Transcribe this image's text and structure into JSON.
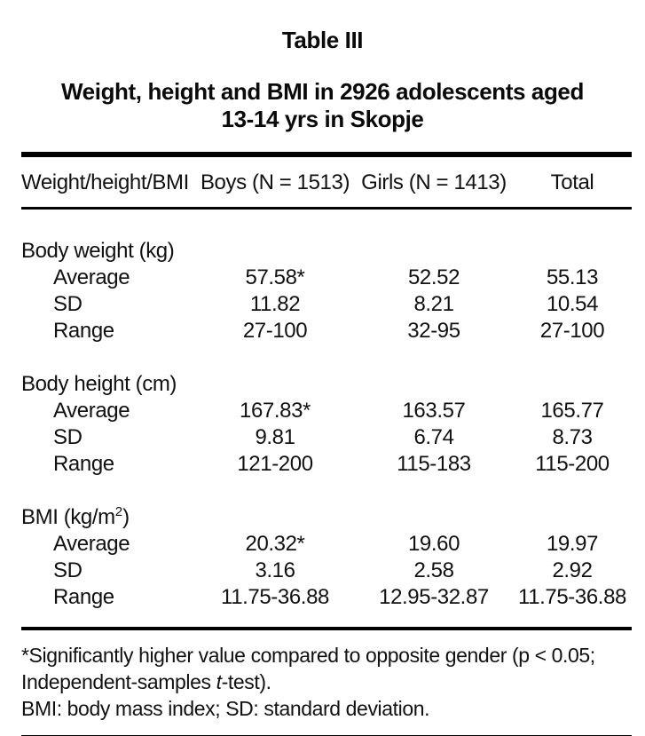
{
  "title": "Table III",
  "subtitle_line1": "Weight, height and BMI in 2926 adolescents aged",
  "subtitle_line2": "13-14 yrs in Skopje",
  "table": {
    "columns": [
      "Weight/height/BMI",
      "Boys (N = 1513)",
      "Girls (N = 1413)",
      "Total"
    ],
    "sections": [
      {
        "label_pre": "Body weight (kg)",
        "label_sup": "",
        "label_post": "",
        "rows": [
          {
            "label": "Average",
            "boys": "57.58*",
            "girls": "52.52",
            "total": "55.13"
          },
          {
            "label": "SD",
            "boys": "11.82",
            "girls": "8.21",
            "total": "10.54"
          },
          {
            "label": "Range",
            "boys": "27-100",
            "girls": "32-95",
            "total": "27-100"
          }
        ]
      },
      {
        "label_pre": "Body height (cm)",
        "label_sup": "",
        "label_post": "",
        "rows": [
          {
            "label": "Average",
            "boys": "167.83*",
            "girls": "163.57",
            "total": "165.77"
          },
          {
            "label": "SD",
            "boys": "9.81",
            "girls": "6.74",
            "total": "8.73"
          },
          {
            "label": "Range",
            "boys": "121-200",
            "girls": "115-183",
            "total": "115-200"
          }
        ]
      },
      {
        "label_pre": "BMI (kg/m",
        "label_sup": "2",
        "label_post": ")",
        "rows": [
          {
            "label": "Average",
            "boys": "20.32*",
            "girls": "19.60",
            "total": "19.97"
          },
          {
            "label": "SD",
            "boys": "3.16",
            "girls": "2.58",
            "total": "2.92"
          },
          {
            "label": "Range",
            "boys": "11.75-36.88",
            "girls": "12.95-32.87",
            "total": "11.75-36.88"
          }
        ]
      }
    ]
  },
  "footnotes": {
    "line1": "*Significantly higher value compared to opposite gender (p < 0.05;",
    "line2_pre": "Independent-samples ",
    "line2_italic": "t",
    "line2_post": "-test).",
    "line3": "BMI: body mass index; SD: standard deviation."
  },
  "colors": {
    "text": "#111111",
    "rule": "#000000",
    "background": "#ffffff"
  }
}
